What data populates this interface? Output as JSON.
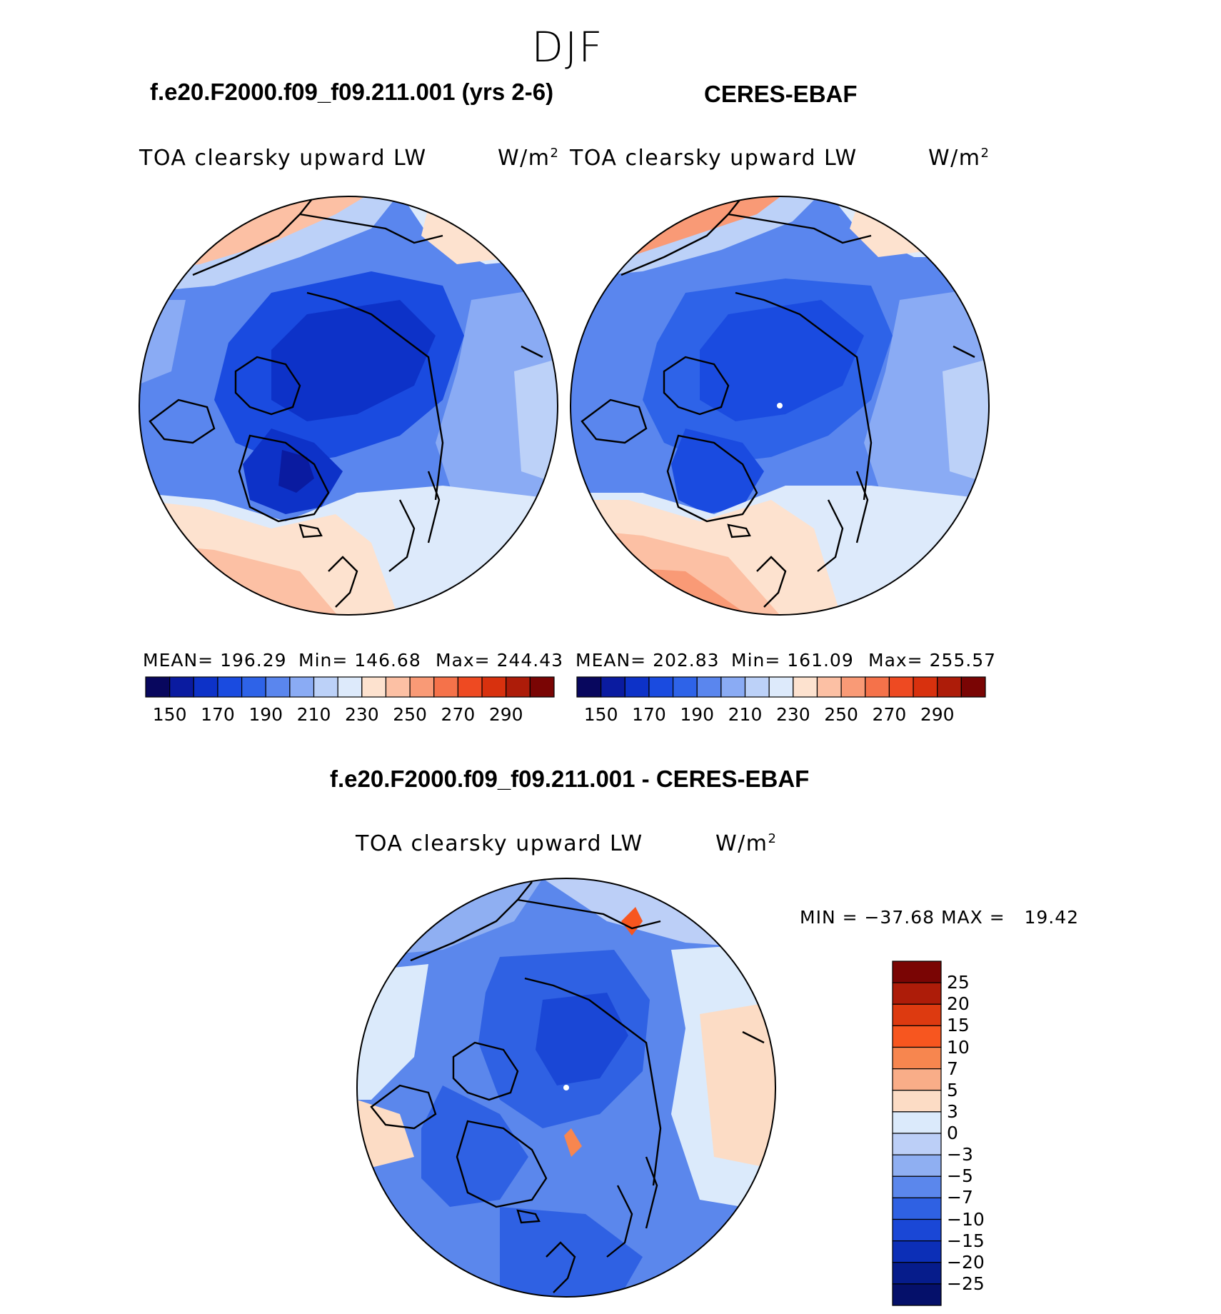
{
  "season": "DJF",
  "panels": [
    {
      "case_title": "f.e20.F2000.f09_f09.211.001 (yrs 2-6)",
      "variable": "TOA clearsky upward LW",
      "units": "W/m",
      "units_sup": "2",
      "mean": "MEAN= 196.29",
      "min": "Min= 146.68",
      "max": "Max= 244.43"
    },
    {
      "case_title": "CERES-EBAF",
      "variable": "TOA clearsky upward LW",
      "units": "W/m",
      "units_sup": "2",
      "mean": "MEAN= 202.83",
      "min": "Min= 161.09",
      "max": "Max= 255.57"
    }
  ],
  "colorbar_top": {
    "colors": [
      "#08075e",
      "#0a1ba0",
      "#0d32c8",
      "#1a4be0",
      "#2e63e8",
      "#5a86ee",
      "#8aabf4",
      "#bcd1f8",
      "#ddeafb",
      "#fde2cf",
      "#fcc0a4",
      "#f99a76",
      "#f5724a",
      "#ee4a22",
      "#d8310e",
      "#ad1c09",
      "#7a0504"
    ],
    "ticks": [
      "150",
      "170",
      "190",
      "210",
      "230",
      "250",
      "270",
      "290"
    ]
  },
  "diff": {
    "title": "f.e20.F2000.f09_f09.211.001 - CERES-EBAF",
    "variable": "TOA clearsky upward LW",
    "units": "W/m",
    "units_sup": "2",
    "minmax": "MIN = −37.68 MAX =   19.42",
    "colors": [
      "#7a0504",
      "#ad1c09",
      "#dd3a10",
      "#f7561f",
      "#f7864f",
      "#f9ad88",
      "#fcdcc5",
      "#dbeafb",
      "#bccff7",
      "#8faff2",
      "#5b87ec",
      "#2f61e3",
      "#1a47d6",
      "#0c2fb7",
      "#061c8b",
      "#05106a"
    ],
    "labels": [
      "25",
      "20",
      "15",
      "10",
      "7",
      "5",
      "3",
      "0",
      "−3",
      "−5",
      "−7",
      "−10",
      "−15",
      "−20",
      "−25"
    ]
  }
}
